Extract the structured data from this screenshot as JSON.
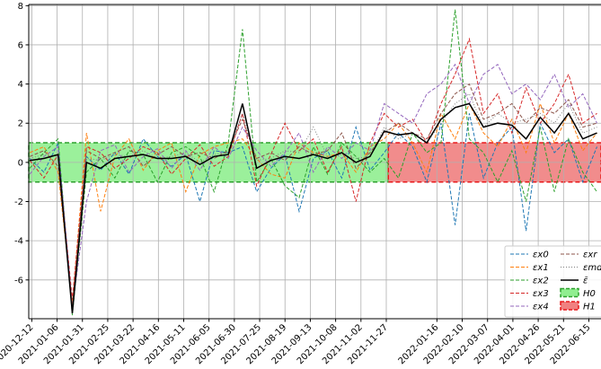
{
  "chart_data": {
    "type": "line",
    "x": [
      "2020-12-10",
      "2020-12-24",
      "2021-01-07",
      "2021-01-21",
      "2021-02-04",
      "2021-02-18",
      "2021-03-04",
      "2021-03-18",
      "2021-04-01",
      "2021-04-15",
      "2021-04-29",
      "2021-05-13",
      "2021-05-27",
      "2021-06-10",
      "2021-06-24",
      "2021-07-08",
      "2021-07-22",
      "2021-08-05",
      "2021-08-19",
      "2021-09-02",
      "2021-09-16",
      "2021-09-30",
      "2021-10-14",
      "2021-10-28",
      "2021-11-11",
      "2021-11-25",
      "2021-12-09",
      "2021-12-23",
      "2022-01-06",
      "2022-01-20",
      "2022-02-03",
      "2022-02-17",
      "2022-03-03",
      "2022-03-17",
      "2022-03-31",
      "2022-04-14",
      "2022-04-28",
      "2022-05-12",
      "2022-05-26",
      "2022-06-09",
      "2022-06-23"
    ],
    "series": [
      {
        "name": "εx0",
        "color": "#1f77b4",
        "linestyle": "dashed",
        "values": [
          0.2,
          -0.5,
          1.0,
          -7.5,
          0.3,
          -0.4,
          0.5,
          -0.6,
          1.2,
          0.3,
          -0.2,
          0.4,
          -2.0,
          0.6,
          0.5,
          0.8,
          -1.5,
          -0.3,
          0.4,
          -2.5,
          0.2,
          0.6,
          -0.8,
          1.8,
          -0.4,
          0.5,
          1.5,
          0.8,
          -1.0,
          2.0,
          -3.2,
          2.5,
          -0.8,
          1.0,
          1.8,
          -3.5,
          2.0,
          0.5,
          1.2,
          -1.0,
          0.8
        ]
      },
      {
        "name": "εx1",
        "color": "#ff7f0e",
        "linestyle": "dashed",
        "values": [
          0.5,
          0.8,
          -0.5,
          -7.2,
          1.5,
          -2.5,
          0.3,
          1.2,
          -0.4,
          0.6,
          1.0,
          -1.5,
          0.4,
          0.8,
          1.0,
          1.2,
          0.2,
          -0.6,
          -0.8,
          1.0,
          0.5,
          0.3,
          0.5,
          -0.5,
          0.8,
          1.2,
          2.0,
          1.0,
          -0.5,
          2.5,
          1.2,
          3.0,
          1.5,
          0.8,
          2.2,
          0.5,
          3.0,
          1.0,
          2.5,
          0.6,
          1.5
        ]
      },
      {
        "name": "εx2",
        "color": "#2ca02c",
        "linestyle": "dashed",
        "values": [
          -0.3,
          0.5,
          1.2,
          -7.8,
          -0.5,
          0.2,
          -0.8,
          0.6,
          0.4,
          -1.0,
          0.5,
          0.8,
          0.3,
          -1.5,
          1.0,
          6.8,
          -1.0,
          0.2,
          -1.2,
          -1.8,
          0.8,
          -0.6,
          1.0,
          0.3,
          -0.5,
          0.2,
          -0.8,
          1.5,
          0.5,
          1.0,
          7.8,
          1.2,
          0.5,
          -1.0,
          0.6,
          -2.0,
          1.8,
          -1.5,
          1.2,
          -0.5,
          -1.5
        ]
      },
      {
        "name": "εx3",
        "color": "#d62728",
        "linestyle": "dashed",
        "values": [
          0.1,
          -0.8,
          0.4,
          -7.0,
          0.8,
          0.5,
          -0.3,
          0.2,
          0.8,
          0.5,
          -0.6,
          0.2,
          0.9,
          -0.2,
          0.3,
          2.5,
          -1.2,
          0.4,
          2.0,
          0.6,
          1.2,
          -0.5,
          0.8,
          -2.0,
          1.0,
          2.5,
          1.8,
          2.2,
          1.0,
          3.0,
          4.5,
          6.3,
          2.5,
          3.5,
          1.5,
          3.8,
          2.0,
          3.0,
          4.5,
          2.0,
          2.5
        ]
      },
      {
        "name": "εx4",
        "color": "#9467bd",
        "linestyle": "dashed",
        "values": [
          -0.6,
          0.3,
          0.8,
          -7.4,
          -2.0,
          0.6,
          0.9,
          -0.5,
          0.3,
          0.7,
          -0.3,
          0.6,
          -0.4,
          0.8,
          0.2,
          1.8,
          0.6,
          -0.2,
          0.5,
          1.5,
          -0.5,
          0.8,
          0.2,
          1.0,
          0.6,
          3.0,
          2.5,
          2.0,
          3.5,
          4.0,
          5.0,
          3.0,
          4.5,
          5.0,
          3.5,
          4.0,
          3.2,
          4.5,
          2.8,
          3.5,
          2.0
        ]
      },
      {
        "name": "εxr",
        "color": "#8c564b",
        "linestyle": "dashed",
        "values": [
          0.3,
          0.6,
          -0.2,
          -7.3,
          0.6,
          0.2,
          0.5,
          0.8,
          -0.2,
          0.4,
          0.8,
          0.3,
          0.5,
          0.2,
          0.6,
          2.2,
          0.2,
          0.5,
          0.1,
          0.8,
          0.4,
          0.6,
          1.5,
          -0.3,
          0.5,
          1.5,
          2.0,
          1.5,
          1.2,
          2.5,
          3.5,
          4.0,
          2.2,
          2.5,
          3.0,
          2.0,
          2.8,
          2.5,
          3.2,
          1.8,
          2.0
        ]
      },
      {
        "name": "εmd",
        "color": "#7f7f7f",
        "linestyle": "dotted",
        "values": [
          0.2,
          0.4,
          0.3,
          -7.6,
          0.2,
          0.1,
          0.4,
          0.3,
          0.6,
          0.2,
          0.3,
          0.5,
          0.0,
          0.4,
          0.5,
          2.5,
          0.1,
          0.2,
          0.6,
          0.5,
          1.8,
          0.3,
          0.4,
          0.2,
          0.3,
          1.8,
          1.2,
          1.5,
          1.0,
          2.0,
          3.0,
          3.5,
          1.8,
          2.5,
          2.0,
          2.2,
          2.5,
          2.0,
          3.0,
          1.5,
          1.8
        ]
      },
      {
        "name": "ε̄",
        "color": "#000000",
        "linestyle": "solid",
        "values": [
          0.1,
          0.2,
          0.4,
          -7.7,
          0.0,
          -0.3,
          0.2,
          0.3,
          0.4,
          0.2,
          0.2,
          0.3,
          -0.1,
          0.3,
          0.4,
          3.0,
          -0.3,
          0.1,
          0.3,
          0.2,
          0.4,
          0.2,
          0.5,
          0.0,
          0.3,
          1.6,
          1.4,
          1.5,
          1.0,
          2.2,
          2.8,
          3.0,
          1.8,
          2.0,
          1.9,
          1.2,
          2.3,
          1.5,
          2.5,
          1.2,
          1.5
        ]
      }
    ],
    "regions": [
      {
        "name": "H0",
        "color": "#90ee90",
        "edgecolor": "#2ca02c",
        "x": [
          "2020-12-09",
          "2021-11-29"
        ],
        "y": [
          -1,
          1
        ]
      },
      {
        "name": "H1",
        "color": "#f08080",
        "edgecolor": "#e8191b",
        "x": [
          "2021-11-29",
          "2022-06-27"
        ],
        "y": [
          -1,
          1
        ]
      }
    ],
    "xlim": [
      "2020-12-09",
      "2022-06-27"
    ],
    "xticks": [
      "2020-12-12",
      "2021-01-06",
      "2021-01-31",
      "2021-02-25",
      "2021-03-22",
      "2021-04-16",
      "2021-05-11",
      "2021-06-05",
      "2021-06-30",
      "2021-07-25",
      "2021-08-19",
      "2021-09-13",
      "2021-10-08",
      "2021-11-02",
      "2021-11-27",
      "2022-01-16",
      "2022-02-10",
      "2022-03-07",
      "2022-04-01",
      "2022-04-26",
      "2022-05-21",
      "2022-06-15"
    ],
    "ylim": [
      -7.98,
      8.06
    ],
    "yticks": [
      -6,
      -4,
      -2,
      0,
      2,
      4,
      6,
      8
    ],
    "grid": true,
    "legend": "lower right"
  }
}
